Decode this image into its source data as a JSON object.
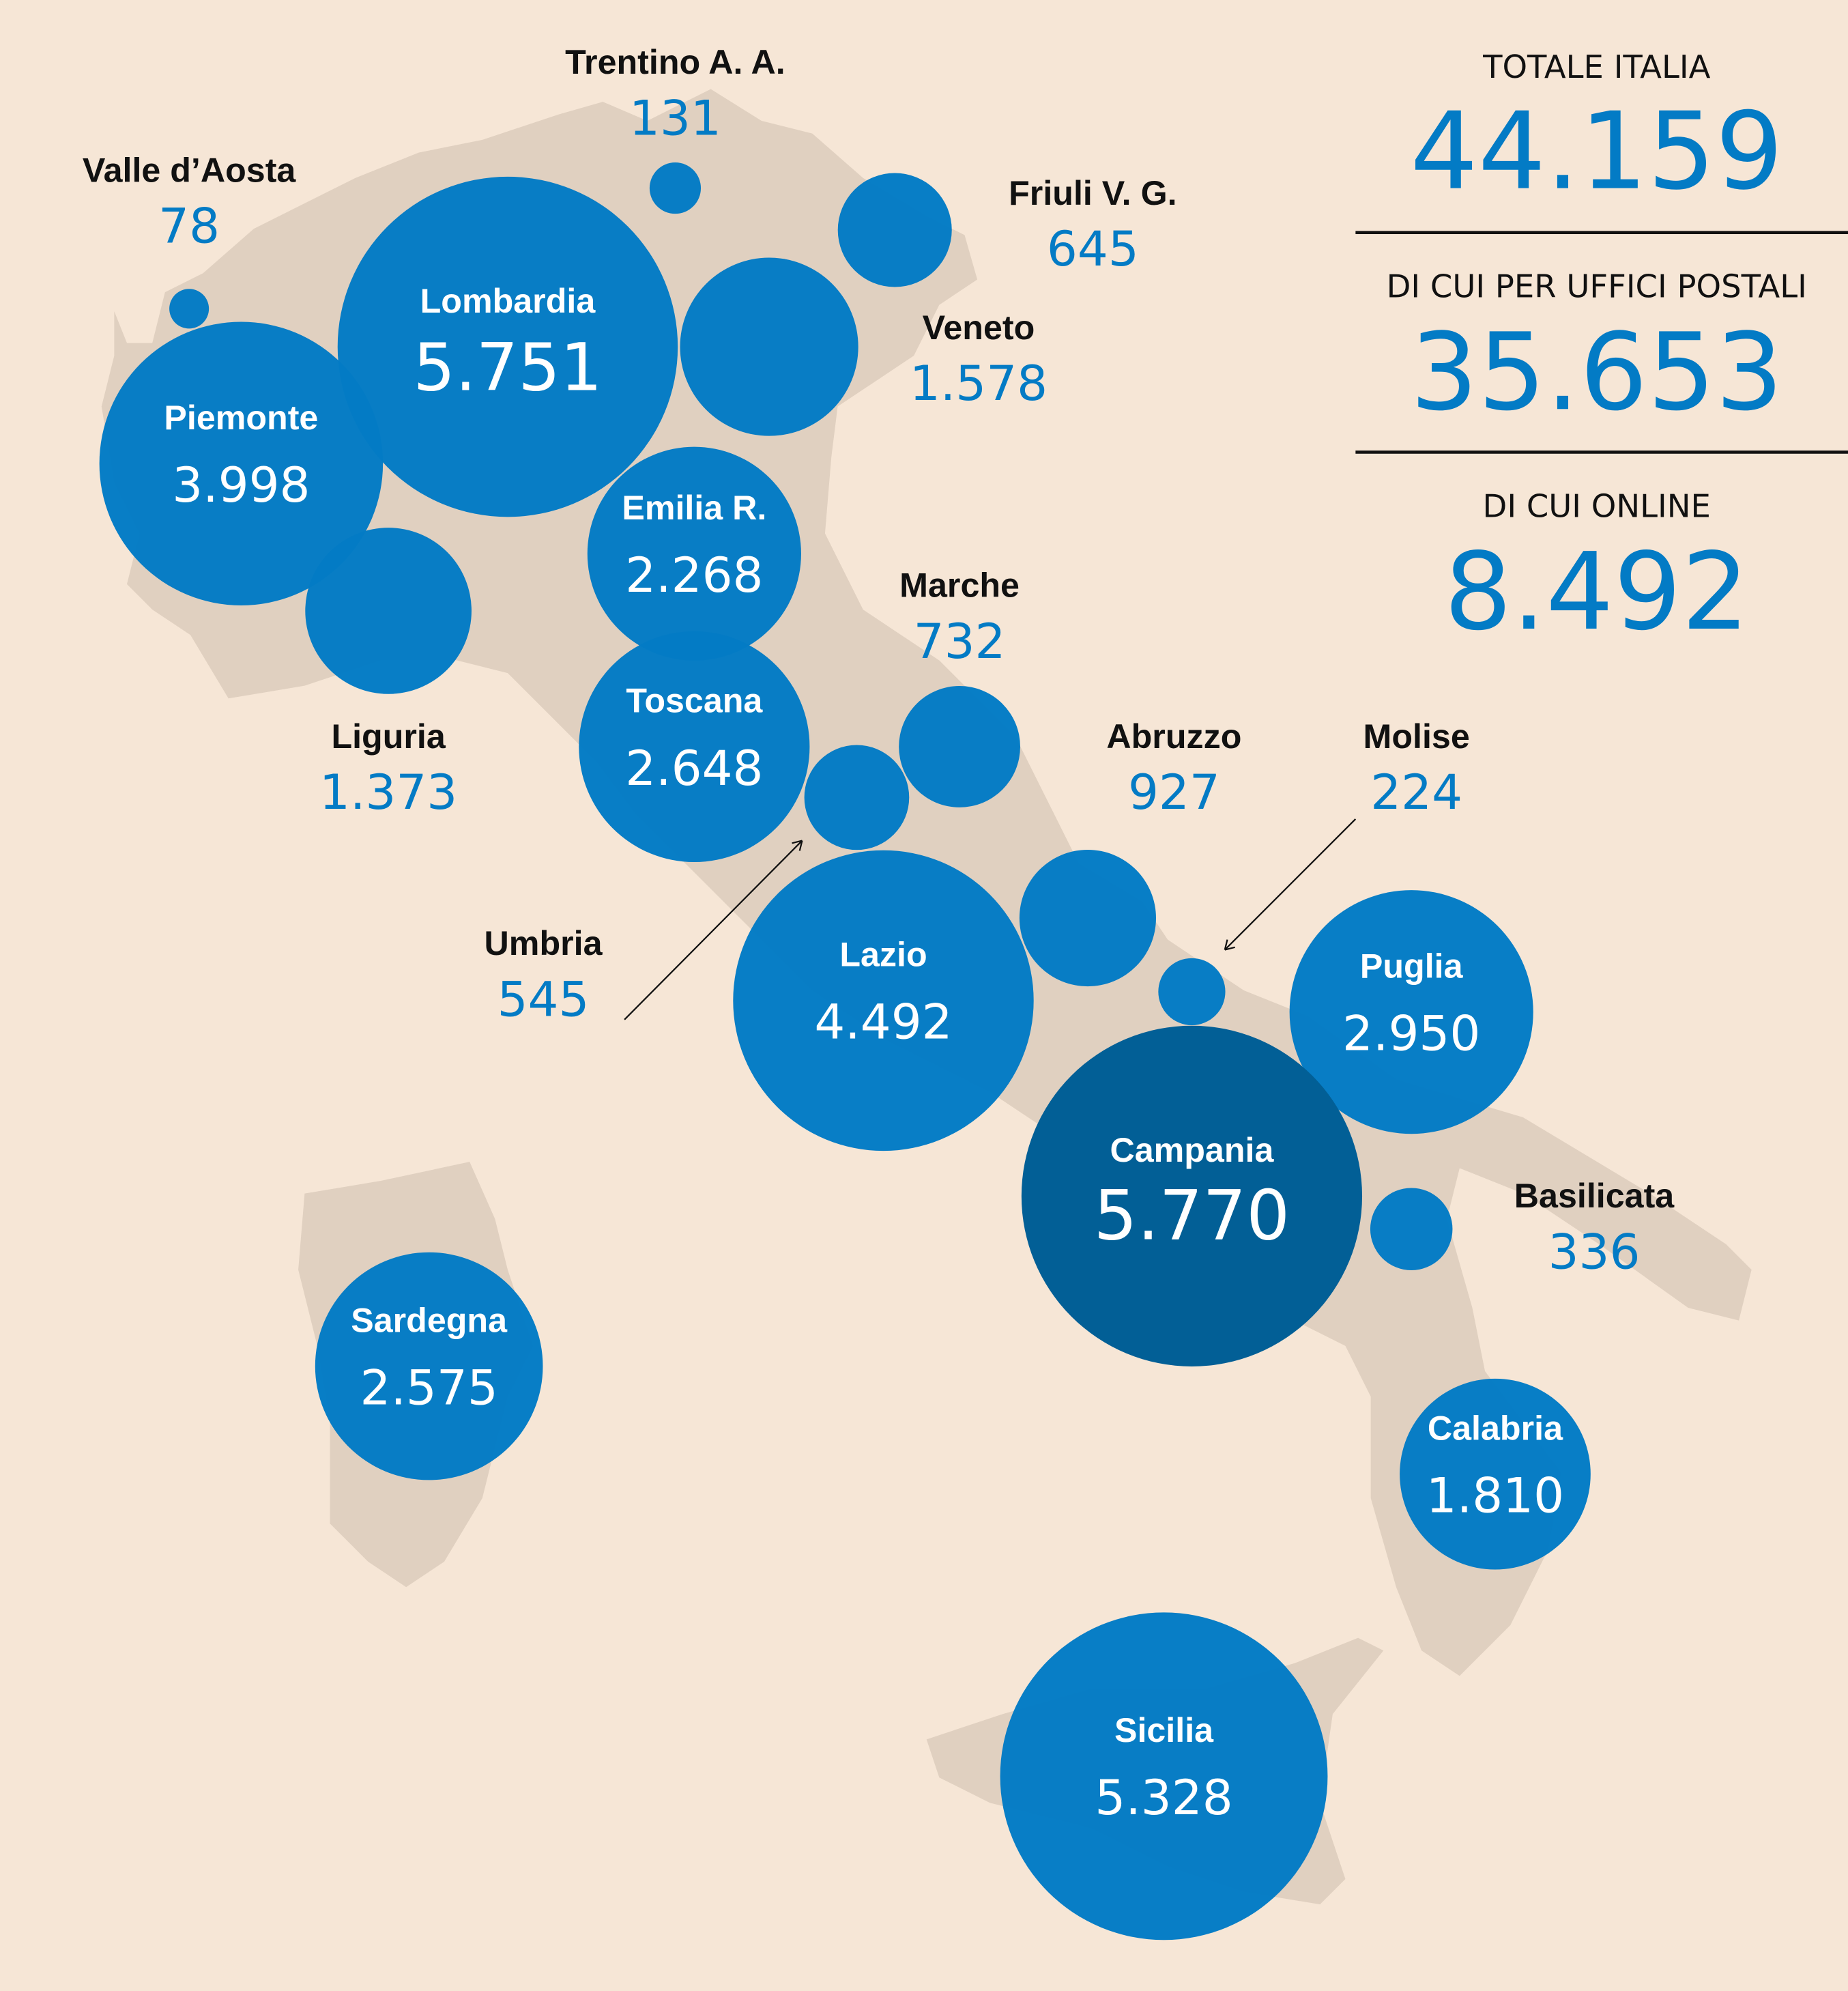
{
  "colors": {
    "background": "#f6e6d6",
    "land": "#e0d0c0",
    "bubble": "#037bc5",
    "bubble_highlight": "#025f96",
    "label": "#111111",
    "value": "#037bc5"
  },
  "summary": [
    {
      "label": "TOTALE ITALIA",
      "value": "44.159"
    },
    {
      "label": "DI CUI PER UFFICI POSTALI",
      "value": "35.653"
    },
    {
      "label": "DI CUI ONLINE",
      "value": "8.492"
    }
  ],
  "regions": [
    {
      "name": "Valle d’Aosta",
      "value": "78",
      "n": 78
    },
    {
      "name": "Trentino A. A.",
      "value": "131",
      "n": 131
    },
    {
      "name": "Friuli V. G.",
      "value": "645",
      "n": 645
    },
    {
      "name": "Lombardia",
      "value": "5.751",
      "n": 5751
    },
    {
      "name": "Veneto",
      "value": "1.578",
      "n": 1578
    },
    {
      "name": "Piemonte",
      "value": "3.998",
      "n": 3998
    },
    {
      "name": "Liguria",
      "value": "1.373",
      "n": 1373
    },
    {
      "name": "Emilia R.",
      "value": "2.268",
      "n": 2268
    },
    {
      "name": "Toscana",
      "value": "2.648",
      "n": 2648
    },
    {
      "name": "Marche",
      "value": "732",
      "n": 732
    },
    {
      "name": "Umbria",
      "value": "545",
      "n": 545
    },
    {
      "name": "Abruzzo",
      "value": "927",
      "n": 927
    },
    {
      "name": "Lazio",
      "value": "4.492",
      "n": 4492
    },
    {
      "name": "Molise",
      "value": "224",
      "n": 224
    },
    {
      "name": "Puglia",
      "value": "2.950",
      "n": 2950
    },
    {
      "name": "Campania",
      "value": "5.770",
      "n": 5770,
      "highlight": true
    },
    {
      "name": "Basilicata",
      "value": "336",
      "n": 336
    },
    {
      "name": "Sardegna",
      "value": "2.575",
      "n": 2575
    },
    {
      "name": "Calabria",
      "value": "1.810",
      "n": 1810
    },
    {
      "name": "Sicilia",
      "value": "5.328",
      "n": 5328
    }
  ]
}
